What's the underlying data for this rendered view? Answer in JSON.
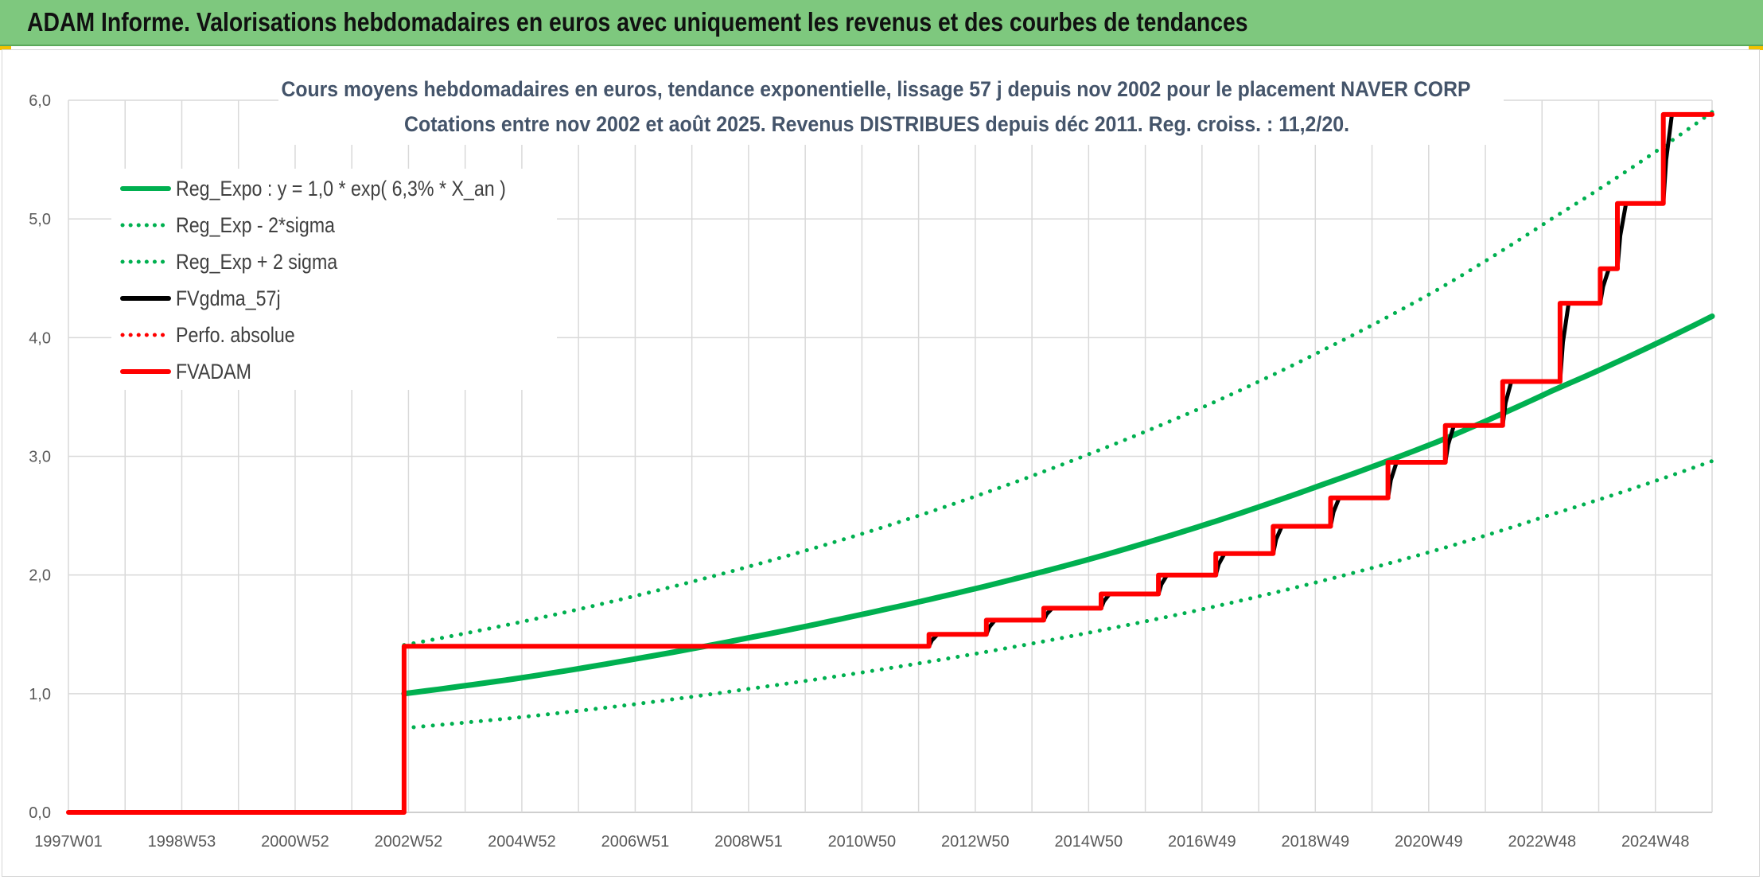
{
  "banner": {
    "title": "ADAM Informe. Valorisations hebdomadaires en euros avec uniquement les revenus et des courbes de tendances"
  },
  "colors": {
    "banner_bg": "#7ec87e",
    "green": "#00b050",
    "red": "#ff0000",
    "black": "#000000",
    "grid": "#d9d9d9"
  },
  "chart_data": {
    "type": "line",
    "title_lines": [
      "Cours moyens hebdomadaires en euros, tendance exponentielle, lissage 57 j depuis nov 2002 pour le placement NAVER CORP",
      "Cotations entre nov 2002 et août 2025. Revenus DISTRIBUES depuis déc 2011. Reg. croiss. : 11,2/20."
    ],
    "x_tick_labels": [
      "1997W01",
      "1998W53",
      "2000W52",
      "2002W52",
      "2004W52",
      "2006W51",
      "2008W51",
      "2010W50",
      "2012W50",
      "2014W50",
      "2016W49",
      "2018W49",
      "2020W49",
      "2022W48",
      "2024W48"
    ],
    "x_range": [
      1997.0,
      2025.65
    ],
    "y_tick_labels": [
      "0,0",
      "1,0",
      "2,0",
      "3,0",
      "4,0",
      "5,0",
      "6,0"
    ],
    "ylim": [
      0,
      6
    ],
    "grid": true,
    "legend_position": "top-left",
    "series": [
      {
        "name": "Reg_Expo : y = 1,0 * exp( 6,3% *  X_an )",
        "color": "#00b050",
        "style": "solid",
        "points": [
          [
            2002.85,
            1.0
          ],
          [
            2004.85,
            1.13
          ],
          [
            2006.85,
            1.29
          ],
          [
            2008.85,
            1.47
          ],
          [
            2010.85,
            1.67
          ],
          [
            2012.85,
            1.89
          ],
          [
            2014.85,
            2.14
          ],
          [
            2016.85,
            2.43
          ],
          [
            2018.85,
            2.76
          ],
          [
            2020.85,
            3.12
          ],
          [
            2022.85,
            3.55
          ],
          [
            2025.65,
            4.18
          ]
        ]
      },
      {
        "name": "Reg_Exp - 2*sigma",
        "color": "#00b050",
        "style": "dotted",
        "points": [
          [
            2002.85,
            0.71
          ],
          [
            2004.85,
            0.8
          ],
          [
            2006.85,
            0.91
          ],
          [
            2008.85,
            1.04
          ],
          [
            2010.85,
            1.18
          ],
          [
            2012.85,
            1.34
          ],
          [
            2014.85,
            1.52
          ],
          [
            2016.85,
            1.72
          ],
          [
            2018.85,
            1.95
          ],
          [
            2020.85,
            2.21
          ],
          [
            2022.85,
            2.51
          ],
          [
            2025.65,
            2.96
          ]
        ]
      },
      {
        "name": "Reg_Exp + 2 sigma",
        "color": "#00b050",
        "style": "dotted",
        "points": [
          [
            2002.85,
            1.41
          ],
          [
            2004.85,
            1.6
          ],
          [
            2006.85,
            1.82
          ],
          [
            2008.85,
            2.07
          ],
          [
            2010.85,
            2.35
          ],
          [
            2012.85,
            2.67
          ],
          [
            2014.85,
            3.03
          ],
          [
            2016.85,
            3.43
          ],
          [
            2018.85,
            3.89
          ],
          [
            2020.85,
            4.4
          ],
          [
            2022.85,
            5.0
          ],
          [
            2025.65,
            5.9
          ]
        ]
      },
      {
        "name": "FVgdma_57j",
        "color": "#000000",
        "style": "solid",
        "points": [
          [
            1997.0,
            0.0
          ],
          [
            2002.85,
            0.0
          ],
          [
            2002.85,
            1.4
          ],
          [
            2012.0,
            1.4
          ],
          [
            2012.05,
            1.45
          ],
          [
            2012.15,
            1.5
          ],
          [
            2013.0,
            1.5
          ],
          [
            2013.05,
            1.56
          ],
          [
            2013.15,
            1.62
          ],
          [
            2014.0,
            1.62
          ],
          [
            2014.05,
            1.67
          ],
          [
            2014.15,
            1.72
          ],
          [
            2015.0,
            1.72
          ],
          [
            2015.05,
            1.78
          ],
          [
            2015.15,
            1.84
          ],
          [
            2016.0,
            1.84
          ],
          [
            2016.05,
            1.92
          ],
          [
            2016.15,
            2.0
          ],
          [
            2017.0,
            2.0
          ],
          [
            2017.05,
            2.09
          ],
          [
            2017.15,
            2.18
          ],
          [
            2018.0,
            2.18
          ],
          [
            2018.05,
            2.3
          ],
          [
            2018.15,
            2.41
          ],
          [
            2019.0,
            2.41
          ],
          [
            2019.05,
            2.53
          ],
          [
            2019.15,
            2.65
          ],
          [
            2020.0,
            2.65
          ],
          [
            2020.05,
            2.8
          ],
          [
            2020.15,
            2.95
          ],
          [
            2021.0,
            2.95
          ],
          [
            2021.05,
            3.1
          ],
          [
            2021.15,
            3.26
          ],
          [
            2022.0,
            3.26
          ],
          [
            2022.05,
            3.45
          ],
          [
            2022.15,
            3.63
          ],
          [
            2023.0,
            3.63
          ],
          [
            2023.05,
            3.96
          ],
          [
            2023.15,
            4.29
          ],
          [
            2023.7,
            4.29
          ],
          [
            2023.75,
            4.43
          ],
          [
            2023.85,
            4.58
          ],
          [
            2024.0,
            4.58
          ],
          [
            2024.05,
            4.86
          ],
          [
            2024.15,
            5.13
          ],
          [
            2024.8,
            5.13
          ],
          [
            2024.85,
            5.5
          ],
          [
            2024.95,
            5.88
          ],
          [
            2025.65,
            5.88
          ]
        ]
      },
      {
        "name": "Perfo. absolue",
        "color": "#ff0000",
        "style": "dotted",
        "points": []
      },
      {
        "name": "FVADAM",
        "color": "#ff0000",
        "style": "solid",
        "points": [
          [
            1997.0,
            0.0
          ],
          [
            2002.85,
            0.0
          ],
          [
            2002.85,
            1.4
          ],
          [
            2012.0,
            1.4
          ],
          [
            2012.0,
            1.5
          ],
          [
            2013.0,
            1.5
          ],
          [
            2013.0,
            1.62
          ],
          [
            2014.0,
            1.62
          ],
          [
            2014.0,
            1.72
          ],
          [
            2015.0,
            1.72
          ],
          [
            2015.0,
            1.84
          ],
          [
            2016.0,
            1.84
          ],
          [
            2016.0,
            2.0
          ],
          [
            2017.0,
            2.0
          ],
          [
            2017.0,
            2.18
          ],
          [
            2018.0,
            2.18
          ],
          [
            2018.0,
            2.41
          ],
          [
            2019.0,
            2.41
          ],
          [
            2019.0,
            2.65
          ],
          [
            2020.0,
            2.65
          ],
          [
            2020.0,
            2.95
          ],
          [
            2021.0,
            2.95
          ],
          [
            2021.0,
            3.26
          ],
          [
            2022.0,
            3.26
          ],
          [
            2022.0,
            3.63
          ],
          [
            2023.0,
            3.63
          ],
          [
            2023.0,
            4.29
          ],
          [
            2023.7,
            4.29
          ],
          [
            2023.7,
            4.58
          ],
          [
            2024.0,
            4.58
          ],
          [
            2024.0,
            5.13
          ],
          [
            2024.8,
            5.13
          ],
          [
            2024.8,
            5.88
          ],
          [
            2025.65,
            5.88
          ]
        ]
      }
    ]
  }
}
